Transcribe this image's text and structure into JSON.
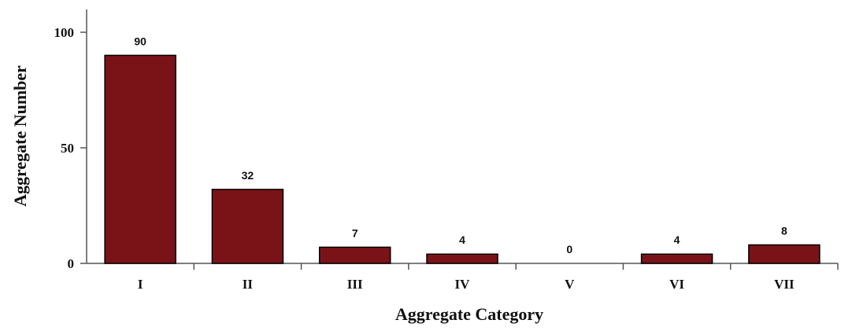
{
  "chart_data": {
    "type": "bar",
    "categories": [
      "I",
      "II",
      "III",
      "IV",
      "V",
      "VI",
      "VII"
    ],
    "values": [
      90,
      32,
      7,
      4,
      0,
      4,
      8
    ],
    "data_labels": [
      "90",
      "32",
      "7",
      "4",
      "0",
      "4",
      "8"
    ],
    "xlabel": "Aggregate Category",
    "ylabel": "Aggregate Number",
    "ylim": [
      0,
      100
    ],
    "yticks": [
      0,
      50,
      100
    ],
    "ytick_labels": [
      "0",
      "50",
      "100"
    ],
    "grid": false,
    "legend": "none",
    "colors": {
      "bar_fill": "#7a1318",
      "bar_stroke": "#000000",
      "axis": "#555555"
    }
  }
}
